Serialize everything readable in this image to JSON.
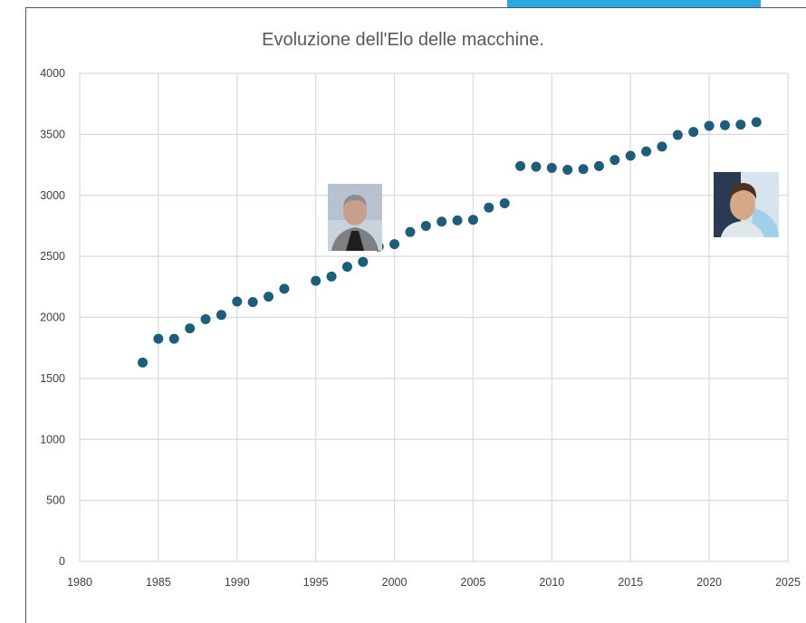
{
  "colors": {
    "accent_bar": "#29a9e1",
    "marker": "#1b5e7b",
    "grid": "#d9d9d9"
  },
  "chart_data": {
    "type": "scatter",
    "title": "Evoluzione dell'Elo delle macchine.",
    "xlabel": "",
    "ylabel": "",
    "xlim": [
      1980,
      2025
    ],
    "ylim": [
      0,
      4000
    ],
    "xticks": [
      1980,
      1985,
      1990,
      1995,
      2000,
      2005,
      2010,
      2015,
      2020,
      2025
    ],
    "yticks": [
      0,
      500,
      1000,
      1500,
      2000,
      2500,
      3000,
      3500,
      4000
    ],
    "grid": true,
    "legend": "none",
    "x": [
      1984,
      1985,
      1986,
      1987,
      1988,
      1989,
      1990,
      1991,
      1992,
      1993,
      1995,
      1996,
      1997,
      1998,
      1999,
      2000,
      2001,
      2002,
      2003,
      2004,
      2005,
      2006,
      2007,
      2008,
      2009,
      2010,
      2011,
      2012,
      2013,
      2014,
      2015,
      2016,
      2017,
      2018,
      2019,
      2020,
      2021,
      2022,
      2023
    ],
    "y": [
      1630,
      1825,
      1825,
      1910,
      1985,
      2020,
      2130,
      2125,
      2170,
      2235,
      2300,
      2335,
      2415,
      2455,
      2580,
      2600,
      2700,
      2750,
      2785,
      2795,
      2800,
      2900,
      2935,
      3240,
      3235,
      3225,
      3210,
      3215,
      3240,
      3290,
      3325,
      3360,
      3400,
      3495,
      3520,
      3570,
      3575,
      3580,
      3600
    ]
  },
  "images": [
    {
      "name": "kasparov-photo",
      "icon": "portrait-man-grey-hair"
    },
    {
      "name": "carlsen-photo",
      "icon": "portrait-man-dark-hair"
    }
  ]
}
